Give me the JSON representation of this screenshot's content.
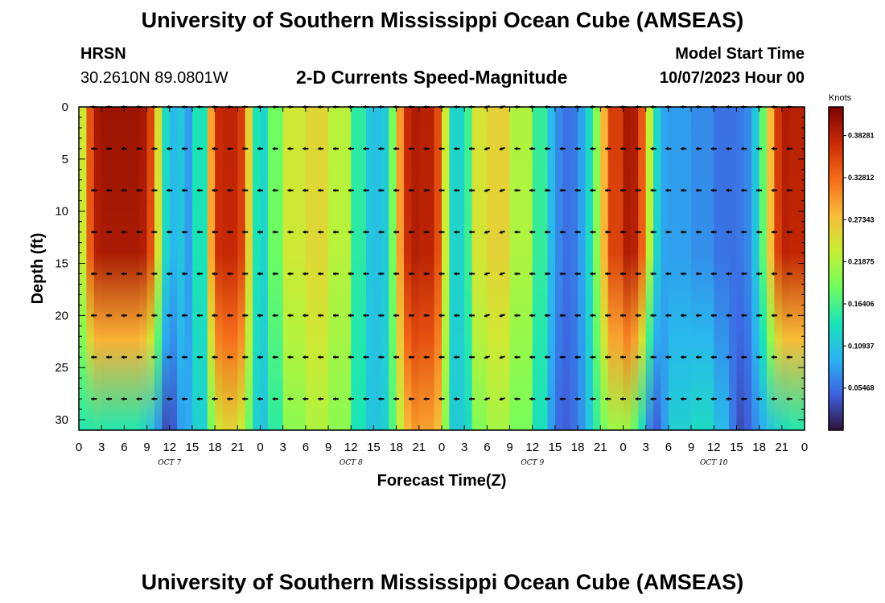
{
  "header": {
    "title": "University of Southern Mississippi Ocean Cube (AMSEAS)",
    "station": "HRSN",
    "coords": "30.2610N  89.0801W",
    "subtitle": "2-D Currents Speed-Magnitude",
    "model_start_label": "Model Start Time",
    "model_start_value": "10/07/2023 Hour 00"
  },
  "footer": {
    "title": "University of Southern Mississippi Ocean Cube (AMSEAS)"
  },
  "chart_data": {
    "type": "heatmap",
    "title": "2-D Currents Speed-Magnitude",
    "xlabel": "Forecast Time(Z)",
    "ylabel": "Depth (ft)",
    "x_hours": [
      0,
      96
    ],
    "y_depth_ft": [
      0,
      31
    ],
    "x_tick_labels": [
      "0",
      "3",
      "6",
      "9",
      "12",
      "15",
      "18",
      "21",
      "0",
      "3",
      "6",
      "9",
      "12",
      "15",
      "18",
      "21",
      "0",
      "3",
      "6",
      "9",
      "12",
      "15",
      "18",
      "21",
      "0",
      "3",
      "6",
      "9",
      "12",
      "15",
      "18",
      "21",
      "0"
    ],
    "day_labels": [
      "OCT 7",
      "OCT 8",
      "OCT 9",
      "OCT 10"
    ],
    "y_ticks": [
      0,
      5,
      10,
      15,
      20,
      25,
      30
    ],
    "colorbar": {
      "unit": "Knots",
      "range": [
        0,
        0.42
      ],
      "ticks": [
        "0.38281",
        "0.32812",
        "0.27343",
        "0.21875",
        "0.16406",
        "0.10937",
        "0.05468"
      ]
    },
    "colors": [
      "#30123b",
      "#3e62e0",
      "#2bb4f2",
      "#1ae4b6",
      "#72fe5e",
      "#c8ef34",
      "#faba39",
      "#f66b19",
      "#ca2a04",
      "#7a0403"
    ],
    "arrow_depths_ft": [
      0,
      4,
      8,
      12,
      16,
      20,
      24,
      28
    ],
    "speed_profile": {
      "hours": [
        0,
        1,
        2,
        3,
        8,
        9,
        10,
        11,
        12,
        13,
        14,
        15,
        17,
        18,
        19,
        21,
        22,
        23,
        24,
        25,
        27,
        30,
        33,
        36,
        38,
        39,
        40,
        41,
        42,
        43,
        44,
        45,
        47,
        48,
        49,
        51,
        52,
        54,
        57,
        60,
        62,
        63,
        64,
        65,
        66,
        67,
        68,
        69,
        70,
        72,
        73,
        74,
        75,
        76,
        77,
        78,
        81,
        84,
        86,
        87,
        88,
        89,
        90,
        91,
        92,
        93,
        94,
        96
      ],
      "surface": [
        0.18,
        0.3,
        0.39,
        0.4,
        0.4,
        0.39,
        0.32,
        0.18,
        0.08,
        0.12,
        0.1,
        0.06,
        0.22,
        0.37,
        0.38,
        0.38,
        0.34,
        0.18,
        0.1,
        0.15,
        0.22,
        0.26,
        0.25,
        0.2,
        0.1,
        0.12,
        0.09,
        0.14,
        0.24,
        0.36,
        0.39,
        0.39,
        0.38,
        0.32,
        0.15,
        0.1,
        0.22,
        0.27,
        0.25,
        0.19,
        0.12,
        0.08,
        0.06,
        0.05,
        0.07,
        0.1,
        0.16,
        0.24,
        0.33,
        0.39,
        0.4,
        0.38,
        0.3,
        0.16,
        0.09,
        0.08,
        0.08,
        0.06,
        0.05,
        0.06,
        0.06,
        0.08,
        0.14,
        0.22,
        0.34,
        0.39,
        0.39,
        0.38
      ],
      "bottom": [
        0.15,
        0.14,
        0.15,
        0.15,
        0.14,
        0.12,
        0.1,
        0.05,
        0.02,
        0.06,
        0.1,
        0.08,
        0.16,
        0.22,
        0.26,
        0.25,
        0.22,
        0.14,
        0.1,
        0.12,
        0.18,
        0.22,
        0.22,
        0.18,
        0.1,
        0.12,
        0.1,
        0.14,
        0.2,
        0.26,
        0.3,
        0.3,
        0.29,
        0.26,
        0.14,
        0.09,
        0.17,
        0.22,
        0.21,
        0.17,
        0.1,
        0.06,
        0.04,
        0.05,
        0.06,
        0.09,
        0.13,
        0.18,
        0.2,
        0.22,
        0.2,
        0.16,
        0.1,
        0.03,
        0.06,
        0.1,
        0.14,
        0.12,
        0.08,
        0.04,
        0.03,
        0.06,
        0.08,
        0.1,
        0.12,
        0.13,
        0.14,
        0.15
      ]
    }
  }
}
